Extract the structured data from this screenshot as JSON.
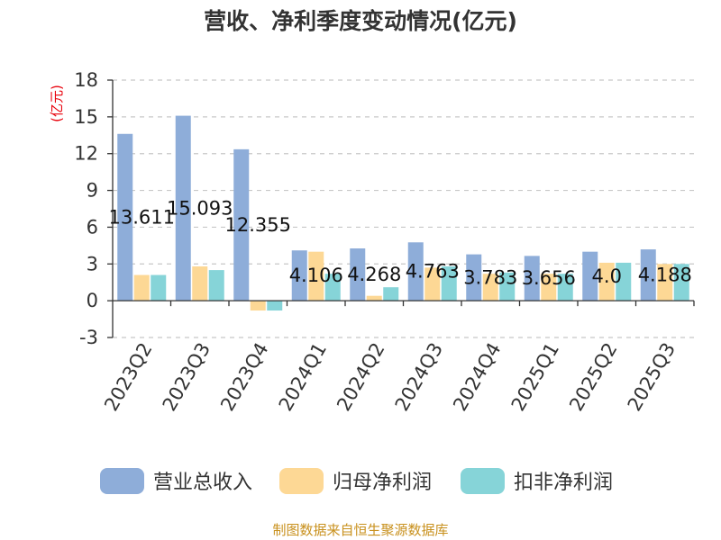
{
  "chart_data": {
    "type": "bar",
    "title": "营收、净利季度变动情况(亿元)",
    "ylabel": "(亿元)",
    "xlabel": "",
    "ylim": [
      -3,
      18
    ],
    "yticks": [
      -3,
      0,
      3,
      6,
      9,
      12,
      15,
      18
    ],
    "grid": true,
    "legend_position": "bottom",
    "categories": [
      "2023Q2",
      "2023Q3",
      "2023Q4",
      "2024Q1",
      "2024Q2",
      "2024Q3",
      "2024Q4",
      "2025Q1",
      "2025Q2",
      "2025Q3"
    ],
    "series": [
      {
        "name": "营业总收入",
        "color": "#8eadd9",
        "values": [
          13.611,
          15.093,
          12.355,
          4.106,
          4.268,
          4.763,
          3.783,
          3.656,
          4.0,
          4.188
        ]
      },
      {
        "name": "归母净利润",
        "color": "#fdd895",
        "values": [
          2.1,
          2.8,
          -0.8,
          4.0,
          0.4,
          2.7,
          2.2,
          2.2,
          3.1,
          3.0
        ]
      },
      {
        "name": "扣非净利润",
        "color": "#86d4d8",
        "values": [
          2.1,
          2.5,
          -0.8,
          2.2,
          1.1,
          2.8,
          2.3,
          2.2,
          3.1,
          3.0
        ]
      }
    ],
    "data_labels": [
      "13.611",
      "15.093",
      "12.355",
      "4.106",
      "4.268",
      "4.763",
      "3.783",
      "3.656",
      "4.0",
      "4.188"
    ]
  },
  "source": "制图数据来自恒生聚源数据库"
}
